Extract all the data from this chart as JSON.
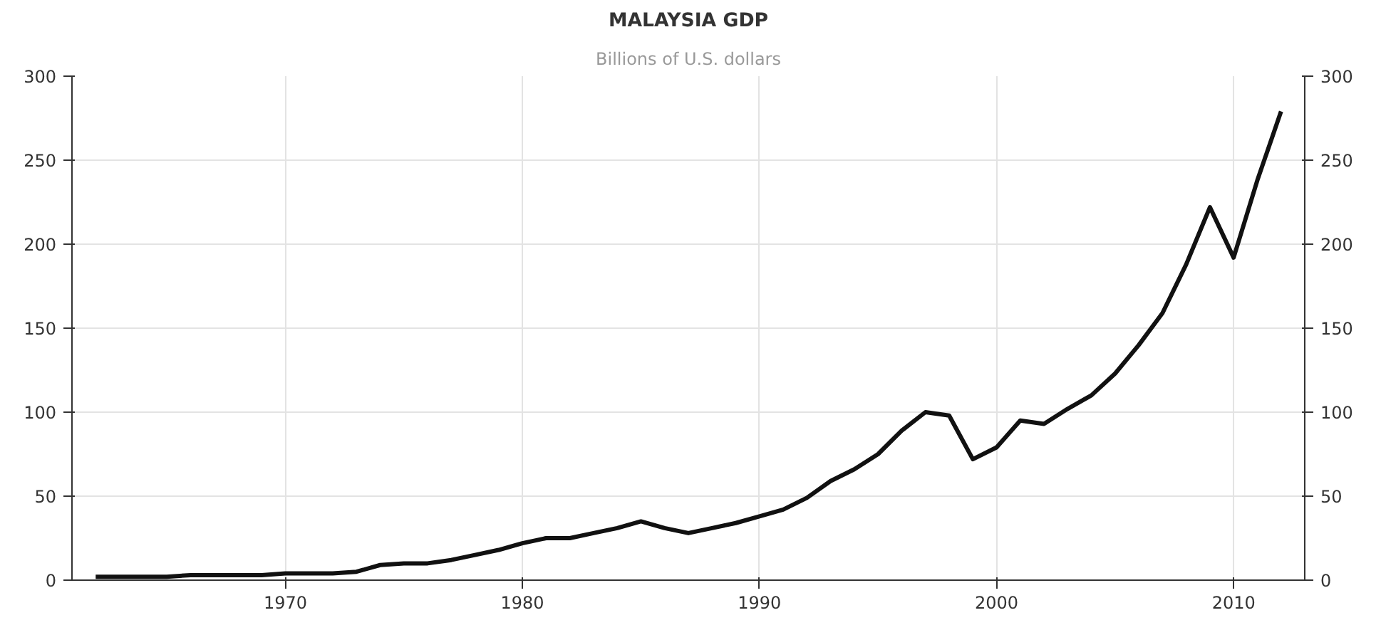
{
  "chart_data": {
    "type": "line",
    "title": "MALAYSIA GDP",
    "subtitle": "Billions of U.S. dollars",
    "x": [
      1962,
      1963,
      1964,
      1965,
      1966,
      1967,
      1968,
      1969,
      1970,
      1971,
      1972,
      1973,
      1974,
      1975,
      1976,
      1977,
      1978,
      1979,
      1980,
      1981,
      1982,
      1983,
      1984,
      1985,
      1986,
      1987,
      1988,
      1989,
      1990,
      1991,
      1992,
      1993,
      1994,
      1995,
      1996,
      1997,
      1998,
      1999,
      2000,
      2001,
      2002,
      2003,
      2004,
      2005,
      2006,
      2007,
      2008,
      2009,
      2010,
      2011,
      2012
    ],
    "series": [
      {
        "color": "#111111",
        "values": [
          2,
          2,
          2,
          2,
          3,
          3,
          3,
          3,
          4,
          4,
          4,
          5,
          9,
          10,
          10,
          12,
          15,
          18,
          22,
          25,
          25,
          28,
          31,
          35,
          31,
          28,
          31,
          34,
          38,
          42,
          49,
          59,
          66,
          75,
          89,
          100,
          98,
          72,
          79,
          95,
          93,
          102,
          110,
          123,
          140,
          159,
          188,
          222,
          192,
          238,
          279
        ]
      }
    ],
    "xlim": [
      1961,
      2013
    ],
    "xticks": [
      1970,
      1980,
      1990,
      2000,
      2010
    ],
    "ylim": [
      0,
      300
    ],
    "yticks": [
      0,
      50,
      100,
      150,
      200,
      250,
      300
    ],
    "y2lim": [
      0,
      300
    ],
    "y2ticks": [
      0,
      50,
      100,
      150,
      200,
      250,
      300
    ],
    "grid": true,
    "marker": "none",
    "line_style": "solid"
  }
}
